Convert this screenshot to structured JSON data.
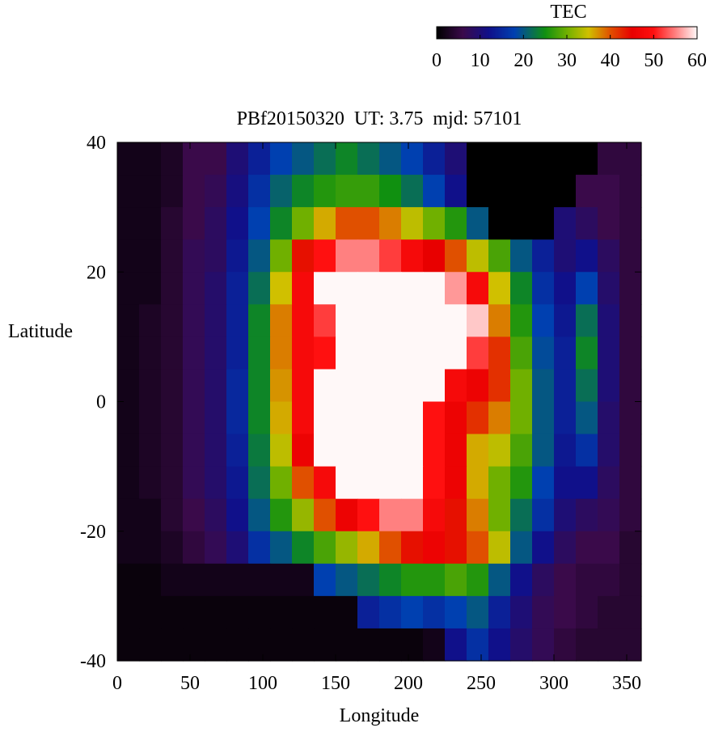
{
  "chart_data": {
    "type": "heatmap",
    "title": "PBf20150320  UT: 3.75  mjd: 57101",
    "xlabel": "Longitude",
    "ylabel": "Latitude",
    "colorbar_label": "TEC",
    "xlim": [
      0,
      360
    ],
    "xticks": [
      0,
      50,
      100,
      150,
      200,
      250,
      300,
      350
    ],
    "ylim": [
      -40,
      40
    ],
    "yticks": [
      -40,
      -20,
      0,
      20,
      40
    ],
    "clim": [
      0,
      60
    ],
    "cticks": [
      0,
      10,
      20,
      30,
      40,
      50,
      60
    ],
    "colorscale": [
      [
        0,
        "#000000"
      ],
      [
        6,
        "#3a0a4a"
      ],
      [
        12,
        "#10108a"
      ],
      [
        18,
        "#0040b0"
      ],
      [
        25,
        "#109010"
      ],
      [
        30,
        "#70b000"
      ],
      [
        35,
        "#d0c000"
      ],
      [
        40,
        "#e05000"
      ],
      [
        45,
        "#e80000"
      ],
      [
        50,
        "#ff1010"
      ],
      [
        55,
        "#ff8080"
      ],
      [
        60,
        "#fff8f8"
      ]
    ],
    "x": [
      7.5,
      22.5,
      37.5,
      52.5,
      67.5,
      82.5,
      97.5,
      112.5,
      127.5,
      142.5,
      157.5,
      172.5,
      187.5,
      202.5,
      217.5,
      232.5,
      247.5,
      262.5,
      277.5,
      292.5,
      307.5,
      322.5,
      337.5,
      352.5
    ],
    "y": [
      37.5,
      32.5,
      27.5,
      22.5,
      17.5,
      12.5,
      7.5,
      2.5,
      -2.5,
      -7.5,
      -12.5,
      -17.5,
      -22.5,
      -27.5,
      -32.5,
      -37.5
    ],
    "z": [
      [
        2,
        2,
        3,
        6,
        6,
        10,
        14,
        18,
        20,
        22,
        24,
        22,
        20,
        18,
        14,
        10,
        0,
        0,
        0,
        0,
        0,
        0,
        5,
        5
      ],
      [
        2,
        2,
        3,
        6,
        7,
        11,
        16,
        21,
        24,
        26,
        27,
        27,
        25,
        22,
        18,
        12,
        0,
        0,
        0,
        0,
        0,
        6,
        6,
        5
      ],
      [
        2,
        2,
        4,
        6,
        8,
        12,
        18,
        24,
        30,
        36,
        40,
        40,
        38,
        34,
        30,
        26,
        20,
        0,
        0,
        0,
        10,
        8,
        6,
        5
      ],
      [
        2,
        2,
        4,
        7,
        8,
        13,
        20,
        30,
        44,
        50,
        55,
        55,
        52,
        48,
        45,
        40,
        34,
        28,
        20,
        14,
        10,
        12,
        8,
        5
      ],
      [
        2,
        2,
        4,
        7,
        9,
        14,
        22,
        35,
        48,
        60,
        60,
        60,
        60,
        60,
        60,
        56,
        48,
        35,
        24,
        16,
        12,
        18,
        9,
        5
      ],
      [
        2,
        3,
        4,
        7,
        9,
        14,
        24,
        38,
        48,
        52,
        60,
        60,
        60,
        60,
        60,
        60,
        58,
        38,
        26,
        18,
        13,
        22,
        10,
        5
      ],
      [
        2,
        3,
        4,
        7,
        9,
        14,
        24,
        38,
        48,
        50,
        60,
        60,
        60,
        60,
        60,
        60,
        52,
        42,
        28,
        19,
        14,
        24,
        10,
        5
      ],
      [
        2,
        3,
        4,
        7,
        9,
        15,
        24,
        37,
        48,
        60,
        60,
        60,
        60,
        60,
        60,
        48,
        46,
        42,
        30,
        20,
        14,
        22,
        10,
        5
      ],
      [
        2,
        3,
        4,
        7,
        9,
        15,
        24,
        36,
        48,
        60,
        60,
        60,
        60,
        60,
        50,
        46,
        42,
        38,
        30,
        20,
        14,
        20,
        9,
        5
      ],
      [
        2,
        3,
        4,
        7,
        9,
        14,
        23,
        34,
        46,
        60,
        60,
        60,
        60,
        60,
        50,
        46,
        36,
        34,
        28,
        20,
        13,
        16,
        9,
        5
      ],
      [
        2,
        3,
        4,
        7,
        9,
        13,
        22,
        30,
        40,
        48,
        60,
        60,
        60,
        60,
        50,
        46,
        36,
        30,
        26,
        18,
        12,
        12,
        8,
        5
      ],
      [
        2,
        2,
        4,
        6,
        8,
        12,
        20,
        26,
        32,
        40,
        46,
        50,
        55,
        55,
        48,
        44,
        38,
        30,
        22,
        16,
        10,
        8,
        7,
        5
      ],
      [
        2,
        2,
        3,
        5,
        7,
        10,
        16,
        20,
        24,
        28,
        32,
        36,
        40,
        44,
        46,
        44,
        40,
        34,
        20,
        12,
        8,
        6,
        6,
        4
      ],
      [
        1,
        1,
        2,
        2,
        2,
        2,
        2,
        2,
        2,
        18,
        20,
        22,
        24,
        26,
        26,
        28,
        26,
        20,
        12,
        8,
        6,
        5,
        5,
        4
      ],
      [
        1,
        1,
        1,
        1,
        1,
        1,
        1,
        1,
        1,
        1,
        1,
        14,
        16,
        18,
        16,
        18,
        20,
        14,
        10,
        7,
        6,
        5,
        4,
        4
      ],
      [
        1,
        1,
        1,
        1,
        1,
        1,
        1,
        1,
        1,
        1,
        1,
        1,
        1,
        1,
        2,
        12,
        16,
        12,
        9,
        7,
        5,
        4,
        4,
        4
      ]
    ]
  }
}
